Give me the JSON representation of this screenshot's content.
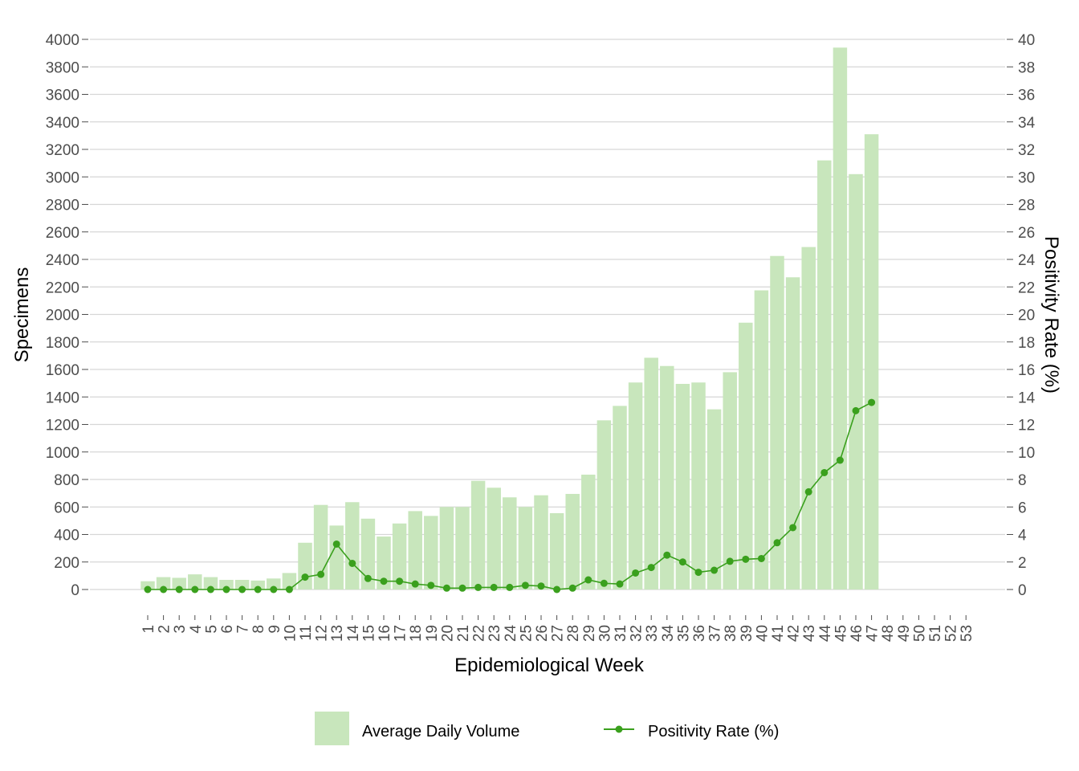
{
  "chart_data": {
    "type": "bar",
    "xlabel": "Epidemiological Week",
    "ylabel": "Specimens",
    "y2label": "Positivity Rate (%)",
    "ylim": [
      0,
      4000
    ],
    "y2lim": [
      0,
      40
    ],
    "y_ticks": [
      0,
      200,
      400,
      600,
      800,
      1000,
      1200,
      1400,
      1600,
      1800,
      2000,
      2200,
      2400,
      2600,
      2800,
      3000,
      3200,
      3400,
      3600,
      3800,
      4000
    ],
    "y2_ticks": [
      0,
      2,
      4,
      6,
      8,
      10,
      12,
      14,
      16,
      18,
      20,
      22,
      24,
      26,
      28,
      30,
      32,
      34,
      36,
      38,
      40
    ],
    "grid": true,
    "legend_position": "bottom",
    "categories": [
      "1",
      "2",
      "3",
      "4",
      "5",
      "6",
      "7",
      "8",
      "9",
      "10",
      "11",
      "12",
      "13",
      "14",
      "15",
      "16",
      "17",
      "18",
      "19",
      "20",
      "21",
      "22",
      "23",
      "24",
      "25",
      "26",
      "27",
      "28",
      "29",
      "30",
      "31",
      "32",
      "33",
      "34",
      "35",
      "36",
      "37",
      "38",
      "39",
      "40",
      "41",
      "42",
      "43",
      "44",
      "45",
      "46",
      "47",
      "48",
      "49",
      "50",
      "51",
      "52",
      "53"
    ],
    "series": [
      {
        "name": "Average Daily Volume",
        "kind": "bar",
        "axis": "left",
        "color": "#c8e6bc",
        "values": [
          60,
          90,
          85,
          110,
          90,
          70,
          70,
          65,
          80,
          120,
          340,
          615,
          465,
          635,
          515,
          385,
          480,
          570,
          535,
          600,
          600,
          790,
          740,
          670,
          600,
          685,
          555,
          695,
          835,
          1230,
          1335,
          1505,
          1685,
          1625,
          1495,
          1505,
          1310,
          1580,
          1940,
          2175,
          2425,
          2270,
          2490,
          3120,
          3940,
          3020,
          3310,
          null,
          null,
          null,
          null,
          null,
          null
        ]
      },
      {
        "name": "Positivity Rate (%)",
        "kind": "line",
        "axis": "right",
        "color": "#3aa01d",
        "values": [
          0.0,
          0.0,
          0.0,
          0.0,
          0.0,
          0.0,
          0.0,
          0.0,
          0.0,
          0.0,
          0.9,
          1.1,
          3.3,
          1.9,
          0.8,
          0.6,
          0.6,
          0.4,
          0.3,
          0.1,
          0.1,
          0.15,
          0.15,
          0.15,
          0.3,
          0.25,
          0.0,
          0.1,
          0.7,
          0.45,
          0.4,
          1.2,
          1.6,
          2.5,
          2.0,
          1.25,
          1.4,
          2.05,
          2.2,
          2.25,
          3.4,
          4.5,
          7.1,
          8.5,
          9.4,
          13.0,
          13.6,
          null,
          null,
          null,
          null,
          null,
          null
        ]
      }
    ]
  },
  "legend": {
    "bar_label": "Average Daily Volume",
    "line_label": "Positivity Rate (%)"
  }
}
